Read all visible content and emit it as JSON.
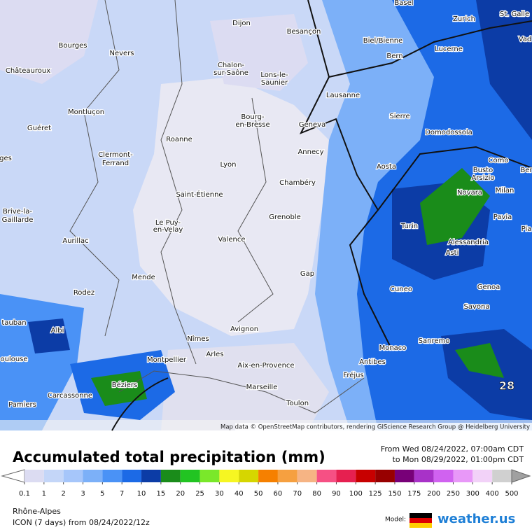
{
  "map": {
    "cities": [
      "Basel",
      "Zurich",
      "St. Galle",
      "Vad",
      "Dijon",
      "Besançon",
      "Biel/Bienne",
      "Bern",
      "Lucerne",
      "Bourges",
      "Nevers",
      "Chalon-",
      "sur-Saône",
      "Châteauroux",
      "Lons-le-",
      "Saunier",
      "Lausanne",
      "Montluçon",
      "Sierre",
      "Bourg-",
      "en-Bresse",
      "Geneva",
      "Guéret",
      "Domodossola",
      "Roanne",
      "Annecy",
      "Clermont-",
      "Ferrand",
      "Aosta",
      "Como",
      "Busto",
      "Arsizio",
      "ges",
      "Lyon",
      "Ber",
      "Chambéry",
      "Novara",
      "Milan",
      "Saint-Étienne",
      "Brive-la-",
      "Gaillarde",
      "Grenoble",
      "Le Puy-",
      "en-Velay",
      "Turin",
      "Pavia",
      "Pia",
      "Aurillac",
      "Valence",
      "Alessandria",
      "Asti",
      "Mende",
      "Gap",
      "Genoa",
      "Cuneo",
      "Rodez",
      "Savona",
      "Avignon",
      "Nîmes",
      "Albi",
      "tauban",
      "Montpellier",
      "Arles",
      "Monaco",
      "Sanremo",
      "Antibes",
      "Aix-en-Provence",
      "oulouse",
      "Béziers",
      "Fréjus",
      "Marseille",
      "Carcassonne",
      "Pamiers",
      "Toulon"
    ],
    "max_label": "28",
    "attribution": "Map data © OpenStreetMap contributors, rendering GIScience Research Group @ Heidelberg University"
  },
  "header": {
    "title": "Accumulated total precipitation (mm)",
    "from": "From Wed 08/24/2022, 07:00am CDT",
    "to": "to Mon 08/29/2022, 01:00pm CDT"
  },
  "legend": {
    "ticks": [
      0.1,
      1,
      2,
      3,
      5,
      7,
      10,
      15,
      20,
      25,
      30,
      40,
      50,
      60,
      70,
      80,
      90,
      100,
      125,
      150,
      175,
      200,
      250,
      300,
      400,
      500
    ],
    "colors": [
      "#dcdcf2",
      "#c4d6f8",
      "#a6c6fa",
      "#7cb0f8",
      "#4a92f6",
      "#1c6ae6",
      "#0c3ca6",
      "#1a8c1a",
      "#22c422",
      "#7ae82a",
      "#f6f622",
      "#d6d600",
      "#f68000",
      "#f6a040",
      "#f6b484",
      "#f65084",
      "#e62050",
      "#c80000",
      "#980000",
      "#780078",
      "#a832c8",
      "#d062f0",
      "#e898f8",
      "#f2d2f8",
      "#d0d0d0"
    ],
    "under_color": "#ffffff",
    "over_color": "#a0a0a0"
  },
  "footer": {
    "region": "Rhône-Alpes",
    "model_run": "ICON (7 days)  from  08/24/2022/12z",
    "model_label": "Model:",
    "brand": "weather.us"
  }
}
